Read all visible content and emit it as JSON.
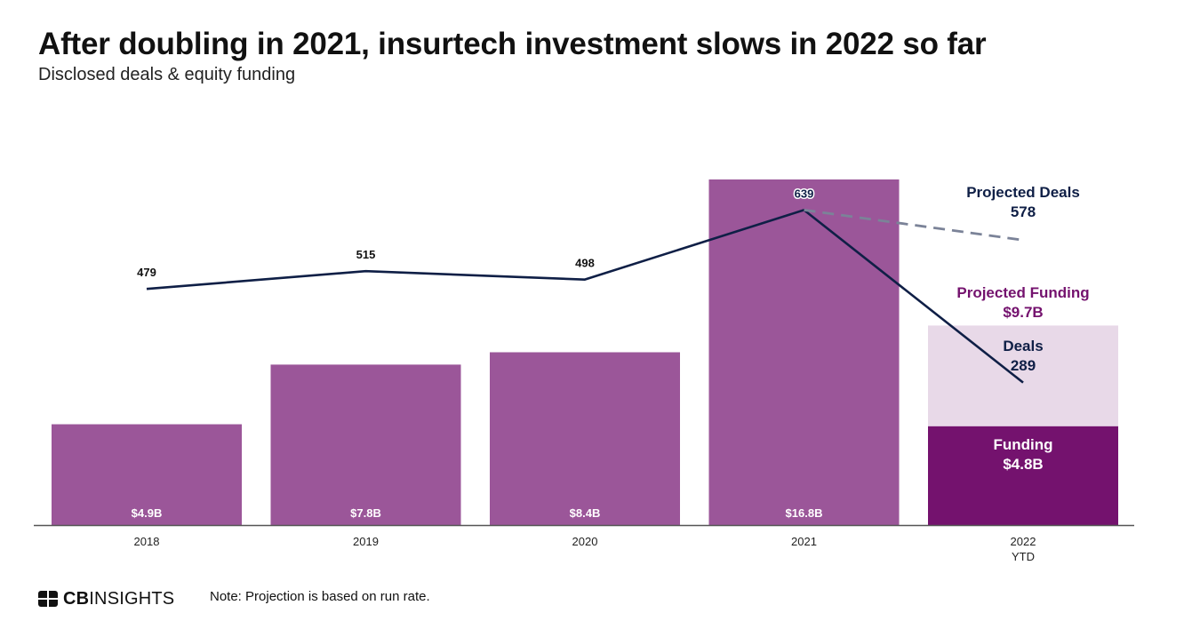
{
  "header": {
    "title": "After doubling in 2021, insurtech investment slows in 2022 so far",
    "subtitle": "Disclosed deals & equity funding"
  },
  "footer": {
    "logo_bold": "CB",
    "logo_rest": "INSIGHTS",
    "logo_icon": "cb-insights-logo-icon",
    "note": "Note: Projection is based on run rate."
  },
  "colors": {
    "funding_bar": "#9b5699",
    "funding_2022": "#74126e",
    "projected_funding": "#e8d9e8",
    "deals_line": "#0f1f46",
    "projected_line": "#7b8398",
    "projected_funding_text": "#74126e",
    "axis": "#555555"
  },
  "chart_data": {
    "type": "bar",
    "categories": [
      "2018",
      "2019",
      "2020",
      "2021",
      "2022"
    ],
    "category_sublabels": [
      "",
      "",
      "",
      "",
      "YTD"
    ],
    "funding_values": [
      4.9,
      7.8,
      8.4,
      16.8,
      4.8
    ],
    "funding_labels": [
      "$4.9B",
      "$7.8B",
      "$8.4B",
      "$16.8B",
      "$4.8B"
    ],
    "deals_values": [
      479,
      515,
      498,
      639,
      289
    ],
    "deals_labels": [
      "479",
      "515",
      "498",
      "639",
      "289"
    ],
    "projected_funding": 9.7,
    "projected_deals": 578,
    "annotations": {
      "projected_deals_title": "Projected Deals",
      "projected_deals_value": "578",
      "projected_funding_title": "Projected Funding",
      "projected_funding_value": "$9.7B",
      "deals_title": "Deals",
      "deals_value": "289",
      "funding_title": "Funding",
      "funding_value": "$4.8B"
    },
    "series": [
      {
        "name": "Funding",
        "type": "bar"
      },
      {
        "name": "Deals",
        "type": "line"
      }
    ],
    "funding_axis_range": [
      0,
      16.8
    ],
    "deals_axis_range": [
      0,
      1065
    ],
    "grid": false
  }
}
